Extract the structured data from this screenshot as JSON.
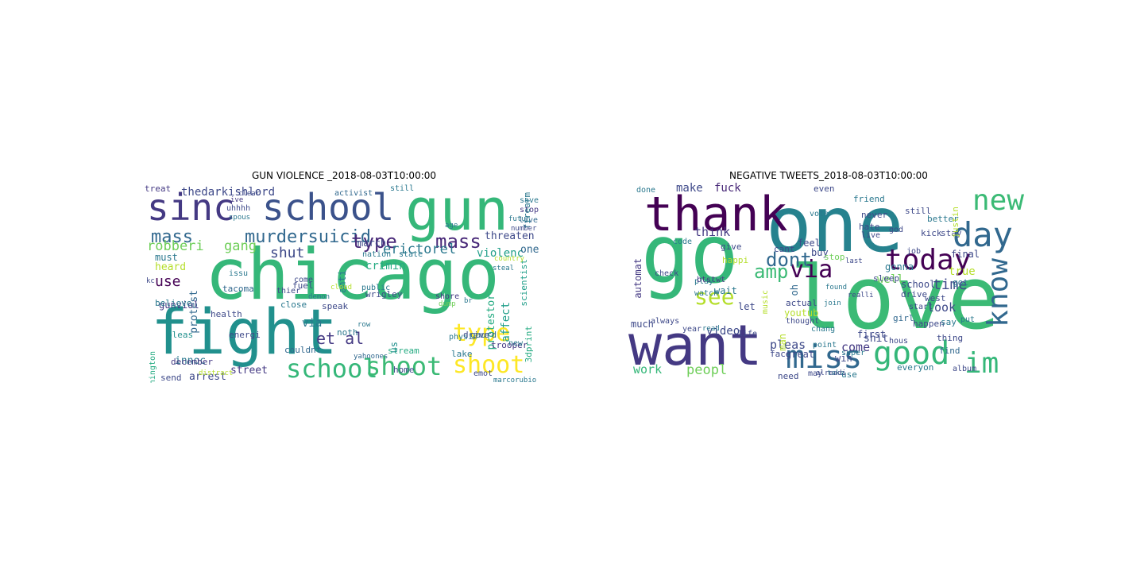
{
  "chart_data": [
    {
      "type": "wordcloud",
      "title": "GUN VIOLENCE _2018-08-03T10:00:00",
      "words": [
        {
          "t": "chicago",
          "c": "#35b779"
        },
        {
          "t": "fight",
          "c": "#21908d"
        },
        {
          "t": "gun",
          "c": "#35b779"
        },
        {
          "t": "sinc",
          "c": "#443983"
        },
        {
          "t": "school",
          "c": "#3b528b"
        },
        {
          "t": "school",
          "c": "#35b779"
        },
        {
          "t": "shoot",
          "c": "#3bba75"
        },
        {
          "t": "type",
          "c": "#fde725"
        },
        {
          "t": "shoot",
          "c": "#fde725"
        },
        {
          "t": "mass",
          "c": "#31688e"
        },
        {
          "t": "murdersuicid",
          "c": "#31688e"
        },
        {
          "t": "type",
          "c": "#482878"
        },
        {
          "t": "mass",
          "c": "#482878"
        },
        {
          "t": "robberi",
          "c": "#6ece58"
        },
        {
          "t": "gang",
          "c": "#6ece58"
        },
        {
          "t": "et al",
          "c": "#443983"
        },
        {
          "t": "shut",
          "c": "#3e4989"
        },
        {
          "t": "use",
          "c": "#440154"
        },
        {
          "t": "heard",
          "c": "#b5de2b"
        },
        {
          "t": "must",
          "c": "#2a788e"
        },
        {
          "t": "thedarkishlord",
          "c": "#3e4989"
        },
        {
          "t": "erictorel",
          "c": "#2a788e"
        },
        {
          "t": "threaten",
          "c": "#3e4989"
        },
        {
          "t": "violenc",
          "c": "#1f9e89"
        },
        {
          "t": "one",
          "c": "#31688e"
        },
        {
          "t": "march",
          "c": "#3e4989"
        },
        {
          "t": "crimin",
          "c": "#25ab82"
        },
        {
          "t": "protest",
          "c": "#31688e"
        },
        {
          "t": "anti",
          "c": "#2a788e"
        },
        {
          "t": "innoc",
          "c": "#2a788e"
        },
        {
          "t": "arrest",
          "c": "#3e4989"
        },
        {
          "t": "street",
          "c": "#443983"
        },
        {
          "t": "via",
          "c": "#2a788e"
        },
        {
          "t": "affect",
          "c": "#1f9e89"
        },
        {
          "t": "protestor",
          "c": "#25ab82"
        },
        {
          "t": "gunviol",
          "c": "#443983"
        },
        {
          "t": "issu",
          "c": "#2a788e"
        },
        {
          "t": "tacoma",
          "c": "#31688e"
        },
        {
          "t": "health",
          "c": "#3e4989"
        },
        {
          "t": "believe",
          "c": "#2a788e"
        },
        {
          "t": "december",
          "c": "#443983"
        },
        {
          "t": "pleas",
          "c": "#21908d"
        },
        {
          "t": "energi",
          "c": "#3e4989"
        },
        {
          "t": "couldnt",
          "c": "#31688e"
        },
        {
          "t": "wrigley",
          "c": "#3e4989"
        },
        {
          "t": "public",
          "c": "#2a788e"
        },
        {
          "t": "shore",
          "c": "#443983"
        },
        {
          "t": "lake",
          "c": "#2a788e"
        },
        {
          "t": "drive",
          "c": "#3e4989"
        },
        {
          "t": "trooper",
          "c": "#443983"
        },
        {
          "t": "gaurd",
          "c": "#31688e"
        },
        {
          "t": "stream",
          "c": "#25ab82"
        },
        {
          "t": "home",
          "c": "#3e4989"
        },
        {
          "t": "physic",
          "c": "#2a788e"
        },
        {
          "t": "treat",
          "c": "#443983"
        },
        {
          "t": "activist",
          "c": "#31688e"
        },
        {
          "t": "still",
          "c": "#2a788e"
        },
        {
          "t": "uhhhh",
          "c": "#3e4989"
        },
        {
          "t": "spous",
          "c": "#2a788e"
        },
        {
          "t": "ive",
          "c": "#443983"
        },
        {
          "t": "clear",
          "c": "#3e4989"
        },
        {
          "t": "stop",
          "c": "#443983"
        },
        {
          "t": "save",
          "c": "#2a788e"
        },
        {
          "t": "live",
          "c": "#31688e"
        },
        {
          "t": "nation",
          "c": "#2a788e"
        },
        {
          "t": "state",
          "c": "#2a788e"
        },
        {
          "t": "scientist",
          "c": "#1f9e89"
        },
        {
          "t": "firearm",
          "c": "#2a788e"
        },
        {
          "t": "washington",
          "c": "#25ab82"
        },
        {
          "t": "fuel",
          "c": "#3e4989"
        },
        {
          "t": "speak",
          "c": "#3e4989"
        },
        {
          "t": "close",
          "c": "#2a788e"
        },
        {
          "t": "thier",
          "c": "#3e4989"
        },
        {
          "t": "come",
          "c": "#3e4989"
        },
        {
          "t": "send",
          "c": "#3e4989"
        },
        {
          "t": "noth",
          "c": "#2a788e"
        },
        {
          "t": "us",
          "c": "#21908d"
        },
        {
          "t": "3dprint",
          "c": "#25ab82"
        },
        {
          "t": "emot",
          "c": "#3e4989"
        },
        {
          "t": "new",
          "c": "#2a788e"
        },
        {
          "t": "demon",
          "c": "#2a788e"
        },
        {
          "t": "row",
          "c": "#2a788e"
        },
        {
          "t": "br",
          "c": "#2a788e"
        },
        {
          "t": "dump",
          "c": "#6ece58"
        },
        {
          "t": "yahoones",
          "c": "#31688e"
        },
        {
          "t": "marcorubio",
          "c": "#2a788e"
        },
        {
          "t": "country",
          "c": "#b5de2b"
        },
        {
          "t": "age",
          "c": "#2a788e"
        },
        {
          "t": "number",
          "c": "#3e4989"
        },
        {
          "t": "futur",
          "c": "#2a788e"
        },
        {
          "t": "kc",
          "c": "#3e4989"
        },
        {
          "t": "cloud",
          "c": "#b5de2b"
        },
        {
          "t": "distract",
          "c": "#b5de2b"
        },
        {
          "t": "steal",
          "c": "#2a788e"
        }
      ]
    },
    {
      "type": "wordcloud",
      "title": "NEGATIVE TWEETS_2018-08-03T10:00:00",
      "words": [
        {
          "t": "one",
          "c": "#26828e"
        },
        {
          "t": "go",
          "c": "#35b779"
        },
        {
          "t": "love",
          "c": "#3bba75"
        },
        {
          "t": "want",
          "c": "#443983"
        },
        {
          "t": "thank",
          "c": "#440154"
        },
        {
          "t": "day",
          "c": "#31688e"
        },
        {
          "t": "new",
          "c": "#3bba75"
        },
        {
          "t": "today",
          "c": "#440154"
        },
        {
          "t": "know",
          "c": "#31688e"
        },
        {
          "t": "good",
          "c": "#35b779"
        },
        {
          "t": "miss",
          "c": "#31688e"
        },
        {
          "t": "im",
          "c": "#35b779"
        },
        {
          "t": "via",
          "c": "#440154"
        },
        {
          "t": "see",
          "c": "#b5de2b"
        },
        {
          "t": "amp",
          "c": "#3bba75"
        },
        {
          "t": "dont",
          "c": "#31688e"
        },
        {
          "t": "make",
          "c": "#3e4989"
        },
        {
          "t": "fuck",
          "c": "#482878"
        },
        {
          "t": "think",
          "c": "#443983"
        },
        {
          "t": "time",
          "c": "#3e4989"
        },
        {
          "t": "look",
          "c": "#3e4989"
        },
        {
          "t": "work",
          "c": "#35b779"
        },
        {
          "t": "peopl",
          "c": "#6ece58"
        },
        {
          "t": "pleas",
          "c": "#3e4989"
        },
        {
          "t": "come",
          "c": "#443983"
        },
        {
          "t": "video",
          "c": "#3e4989"
        },
        {
          "t": "well",
          "c": "#6ece58"
        },
        {
          "t": "gonna",
          "c": "#2a788e"
        },
        {
          "t": "automat",
          "c": "#443983"
        },
        {
          "t": "check",
          "c": "#3e4989"
        },
        {
          "t": "need",
          "c": "#3e4989"
        },
        {
          "t": "use",
          "c": "#2a788e"
        },
        {
          "t": "shit",
          "c": "#3e4989"
        },
        {
          "t": "find",
          "c": "#31688e"
        },
        {
          "t": "everyon",
          "c": "#2a788e"
        },
        {
          "t": "happen",
          "c": "#3e4989"
        },
        {
          "t": "say",
          "c": "#2a788e"
        },
        {
          "t": "thing",
          "c": "#3e4989"
        },
        {
          "t": "got",
          "c": "#2a788e"
        },
        {
          "t": "true",
          "c": "#b5de2b"
        },
        {
          "t": "final",
          "c": "#3e4989"
        },
        {
          "t": "still",
          "c": "#3e4989"
        },
        {
          "t": "give",
          "c": "#3e4989"
        },
        {
          "t": "feel",
          "c": "#3e4989"
        },
        {
          "t": "buy",
          "c": "#3e4989"
        },
        {
          "t": "oh",
          "c": "#31688e"
        },
        {
          "t": "wait",
          "c": "#2a788e"
        },
        {
          "t": "let",
          "c": "#3e4989"
        },
        {
          "t": "stop",
          "c": "#6ece58"
        },
        {
          "t": "actual",
          "c": "#3e4989"
        },
        {
          "t": "much",
          "c": "#3e4989"
        },
        {
          "t": "always",
          "c": "#3e4989"
        },
        {
          "t": "school",
          "c": "#3e4989"
        },
        {
          "t": "drive",
          "c": "#3e4989"
        },
        {
          "t": "west",
          "c": "#3e4989"
        },
        {
          "t": "girl",
          "c": "#31688e"
        },
        {
          "t": "first",
          "c": "#3e4989"
        },
        {
          "t": "great",
          "c": "#3e4989"
        },
        {
          "t": "watch",
          "c": "#2a788e"
        },
        {
          "t": "play",
          "c": "#2a788e"
        },
        {
          "t": "never",
          "c": "#3e4989"
        },
        {
          "t": "hate",
          "c": "#3e4989"
        },
        {
          "t": "friend",
          "c": "#2a788e"
        },
        {
          "t": "even",
          "c": "#3e4989"
        },
        {
          "t": "better",
          "c": "#2a788e"
        },
        {
          "t": "vote",
          "c": "#2a788e"
        },
        {
          "t": "cant",
          "c": "#3e4989"
        },
        {
          "t": "sleep",
          "c": "#3e4989"
        },
        {
          "t": "life",
          "c": "#3e4989"
        },
        {
          "t": "year",
          "c": "#3e4989"
        },
        {
          "t": "read",
          "c": "#2a788e"
        },
        {
          "t": "chang",
          "c": "#2a788e"
        },
        {
          "t": "face",
          "c": "#3e4989"
        },
        {
          "t": "win",
          "c": "#3e4989"
        },
        {
          "t": "thought",
          "c": "#3e4989"
        },
        {
          "t": "youtub",
          "c": "#b5de2b"
        },
        {
          "t": "man",
          "c": "#b5de2b"
        },
        {
          "t": "may",
          "c": "#3e4989"
        },
        {
          "t": "hous",
          "c": "#3e4989"
        },
        {
          "t": "start",
          "c": "#3e4989"
        },
        {
          "t": "album",
          "c": "#3e4989"
        },
        {
          "t": "take",
          "c": "#2a788e"
        },
        {
          "t": "super",
          "c": "#2a788e"
        },
        {
          "t": "join",
          "c": "#2a788e"
        },
        {
          "t": "btstwt",
          "c": "#443983"
        },
        {
          "t": "god",
          "c": "#3e4989"
        },
        {
          "t": "job",
          "c": "#3e4989"
        },
        {
          "t": "stay",
          "c": "#3e4989"
        },
        {
          "t": "kick",
          "c": "#3e4989"
        },
        {
          "t": "done",
          "c": "#2a788e"
        },
        {
          "t": "code",
          "c": "#2a788e"
        },
        {
          "t": "live",
          "c": "#3e4989"
        },
        {
          "t": "put",
          "c": "#2a788e"
        },
        {
          "t": "justin",
          "c": "#b5de2b"
        },
        {
          "t": "happi",
          "c": "#b5de2b"
        },
        {
          "t": "music",
          "c": "#b5de2b"
        },
        {
          "t": "last",
          "c": "#3e4989"
        },
        {
          "t": "realli",
          "c": "#3e4989"
        },
        {
          "t": "found",
          "c": "#2a788e"
        },
        {
          "t": "alreadi",
          "c": "#3e4989"
        },
        {
          "t": "point",
          "c": "#2a788e"
        }
      ]
    }
  ]
}
